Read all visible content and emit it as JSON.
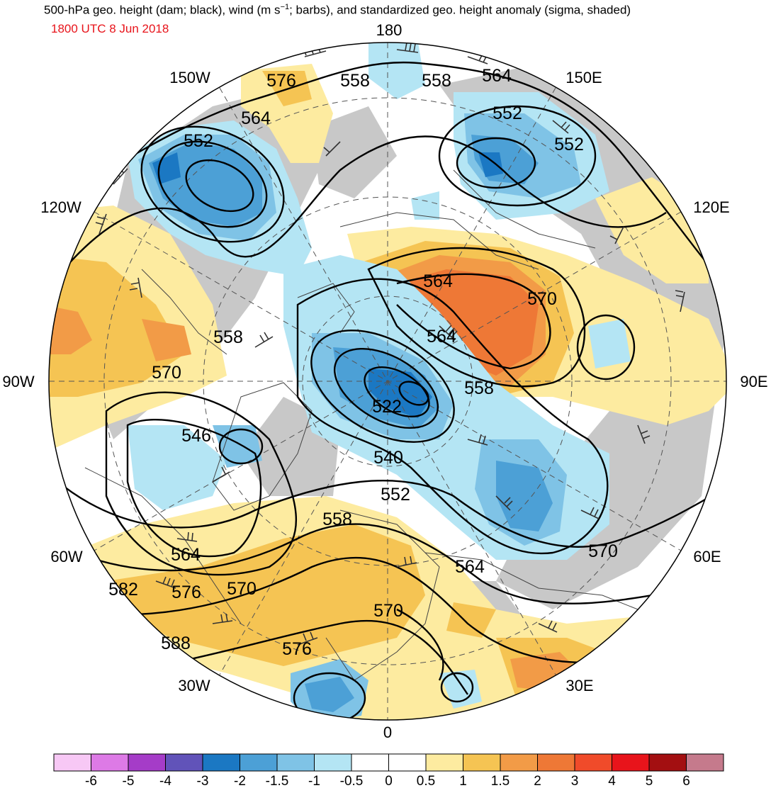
{
  "title": {
    "text_before": "500-hPa geo. height (dam; black), wind (m s",
    "superscript": "−1",
    "text_after": "; barbs), and standardized geo. height anomaly (sigma, shaded)"
  },
  "timestamp": "1800 UTC 8 Jun 2018",
  "longitude_labels": {
    "lon_180": "180",
    "lon_150w": "150W",
    "lon_150e": "150E",
    "lon_120w": "120W",
    "lon_120e": "120E",
    "lon_90w": "90W",
    "lon_90e": "90E",
    "lon_60w": "60W",
    "lon_60e": "60E",
    "lon_30w": "30W",
    "lon_30e": "30E",
    "lon_0": "0"
  },
  "contour_labels": [
    {
      "id": "c576_nw",
      "text": "576"
    },
    {
      "id": "c558_n1",
      "text": "558"
    },
    {
      "id": "c558_n2",
      "text": "558"
    },
    {
      "id": "c564_n",
      "text": "564"
    },
    {
      "id": "c564_nw",
      "text": "564"
    },
    {
      "id": "c552_nw",
      "text": "552"
    },
    {
      "id": "c552_ne1",
      "text": "552"
    },
    {
      "id": "c552_ne2",
      "text": "552"
    },
    {
      "id": "c564_c1",
      "text": "564"
    },
    {
      "id": "c570_e",
      "text": "570"
    },
    {
      "id": "c564_c2",
      "text": "564"
    },
    {
      "id": "c558_w",
      "text": "558"
    },
    {
      "id": "c570_w",
      "text": "570"
    },
    {
      "id": "c558_c",
      "text": "558"
    },
    {
      "id": "c522",
      "text": "522"
    },
    {
      "id": "c546",
      "text": "546"
    },
    {
      "id": "c540",
      "text": "540"
    },
    {
      "id": "c552_c",
      "text": "552"
    },
    {
      "id": "c558_s",
      "text": "558"
    },
    {
      "id": "c564_sw",
      "text": "564"
    },
    {
      "id": "c564_se",
      "text": "564"
    },
    {
      "id": "c570_se",
      "text": "570"
    },
    {
      "id": "c582",
      "text": "582"
    },
    {
      "id": "c576_sw",
      "text": "576"
    },
    {
      "id": "c570_sw",
      "text": "570"
    },
    {
      "id": "c570_s",
      "text": "570"
    },
    {
      "id": "c588",
      "text": "588"
    },
    {
      "id": "c576_s",
      "text": "576"
    }
  ],
  "colorbar": {
    "colors": [
      "#f7c8f5",
      "#dd7ae6",
      "#a53cc8",
      "#6153b9",
      "#1b78c3",
      "#4ca0d6",
      "#7fc3e6",
      "#b4e5f4",
      "#ffffff",
      "#ffffff",
      "#fdeba0",
      "#f5c453",
      "#f29b47",
      "#ee7836",
      "#f04b2a",
      "#e8141b",
      "#a30f11",
      "#c57a8c"
    ],
    "tick_labels": [
      "-6",
      "-5",
      "-4",
      "-3",
      "-2",
      "-1.5",
      "-1",
      "-0.5",
      "0",
      "0.5",
      "1",
      "1.5",
      "2",
      "3",
      "4",
      "5",
      "6"
    ]
  },
  "colors": {
    "gray_land_shade": "#c8c8c8",
    "contour_line": "#000000",
    "timestamp_red": "#e8141b"
  }
}
